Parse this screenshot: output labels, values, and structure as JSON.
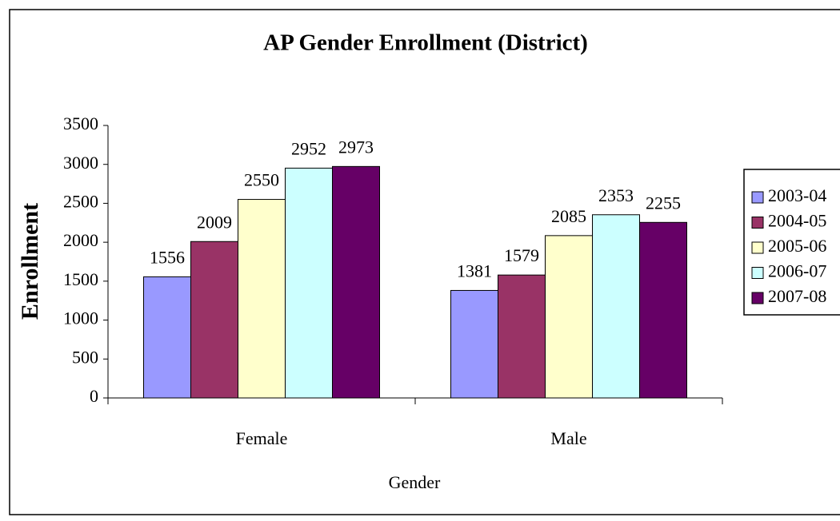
{
  "chart_data": {
    "type": "bar",
    "title": "AP Gender Enrollment (District)",
    "x_label": "Gender",
    "y_label": "Enrollment",
    "categories": [
      "Female",
      "Male"
    ],
    "series": [
      {
        "name": "2003-04",
        "color": "#9999ff",
        "values": [
          1556,
          1381
        ]
      },
      {
        "name": "2004-05",
        "color": "#993366",
        "values": [
          2009,
          1579
        ]
      },
      {
        "name": "2005-06",
        "color": "#ffffcc",
        "values": [
          2550,
          2085
        ]
      },
      {
        "name": "2006-07",
        "color": "#ccffff",
        "values": [
          2952,
          2353
        ]
      },
      {
        "name": "2007-08",
        "color": "#660066",
        "values": [
          2973,
          2255
        ]
      }
    ],
    "ylim": [
      0,
      3500
    ],
    "yticks": [
      0,
      500,
      1000,
      1500,
      2000,
      2500,
      3000,
      3500
    ],
    "grid": false,
    "legend": "right"
  }
}
